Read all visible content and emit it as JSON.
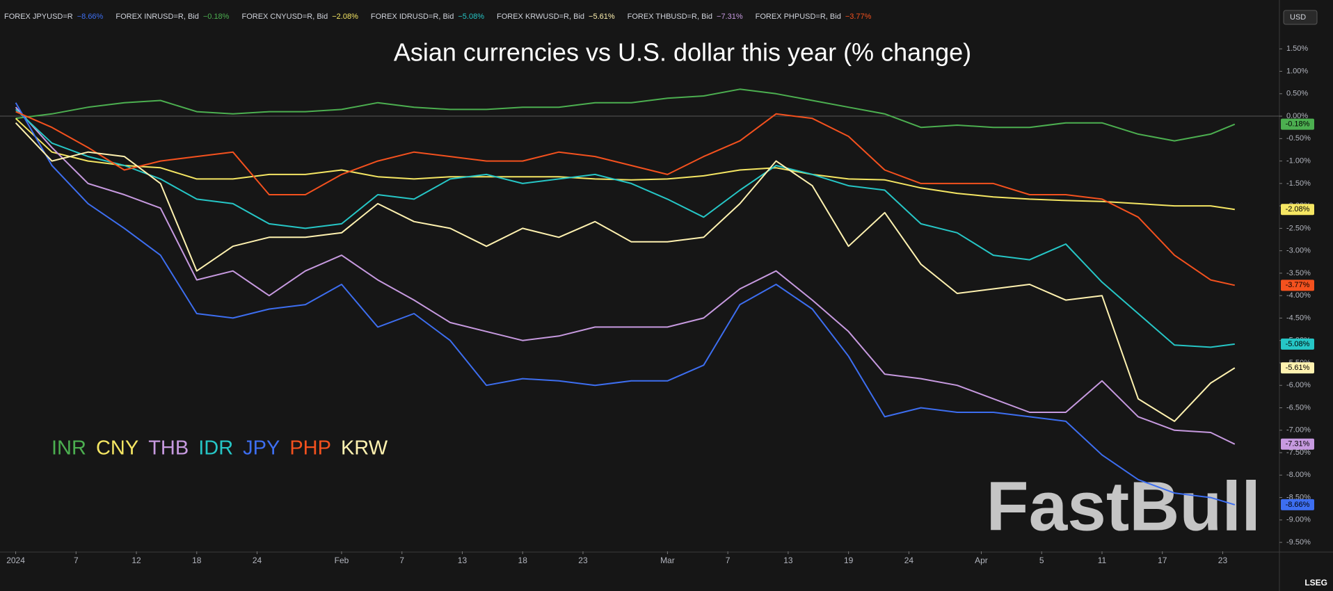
{
  "chart_data": {
    "type": "line",
    "title": "Asian currencies vs U.S. dollar this year (% change)",
    "currency": "USD",
    "watermark": "FastBull",
    "source": "LSEG",
    "tickers": [
      {
        "label": "FOREX JPYUSD=R",
        "change": "−8.66%",
        "color": "#3d6ef0"
      },
      {
        "label": "FOREX INRUSD=R, Bid",
        "change": "−0.18%",
        "color": "#4caf50"
      },
      {
        "label": "FOREX CNYUSD=R, Bid",
        "change": "−2.08%",
        "color": "#f5e663"
      },
      {
        "label": "FOREX IDRUSD=R, Bid",
        "change": "−5.08%",
        "color": "#26c6c6"
      },
      {
        "label": "FOREX KRWUSD=R, Bid",
        "change": "−5.61%",
        "color": "#fff2b0"
      },
      {
        "label": "FOREX THBUSD=R, Bid",
        "change": "−7.31%",
        "color": "#c79ae0"
      },
      {
        "label": "FOREX PHPUSD=R, Bid",
        "change": "−3.77%",
        "color": "#f4511e"
      }
    ],
    "x": [
      0,
      3,
      6,
      9,
      12,
      15,
      18,
      21,
      24,
      27,
      30,
      33,
      36,
      39,
      42,
      45,
      48,
      51,
      54,
      57,
      60,
      63,
      66,
      69,
      72,
      75,
      78,
      81,
      84,
      87,
      90,
      93,
      96,
      99,
      101
    ],
    "xlim": [
      -1.3,
      104.7
    ],
    "xticks": [
      {
        "value": 0,
        "label": "2024"
      },
      {
        "value": 5,
        "label": "7"
      },
      {
        "value": 10,
        "label": "12"
      },
      {
        "value": 15,
        "label": "18"
      },
      {
        "value": 20,
        "label": "24"
      },
      {
        "value": 27,
        "label": "Feb"
      },
      {
        "value": 32,
        "label": "7"
      },
      {
        "value": 37,
        "label": "13"
      },
      {
        "value": 42,
        "label": "18"
      },
      {
        "value": 47,
        "label": "23"
      },
      {
        "value": 54,
        "label": "Mar"
      },
      {
        "value": 59,
        "label": "7"
      },
      {
        "value": 64,
        "label": "13"
      },
      {
        "value": 69,
        "label": "19"
      },
      {
        "value": 74,
        "label": "24"
      },
      {
        "value": 80,
        "label": "Apr"
      },
      {
        "value": 85,
        "label": "5"
      },
      {
        "value": 90,
        "label": "11"
      },
      {
        "value": 95,
        "label": "17"
      },
      {
        "value": 100,
        "label": "23"
      }
    ],
    "ylim": [
      -9.7,
      2.0
    ],
    "yticks": [
      {
        "value": 1.5,
        "label": "1.50%"
      },
      {
        "value": 1.0,
        "label": "1.00%"
      },
      {
        "value": 0.5,
        "label": "0.50%"
      },
      {
        "value": 0,
        "label": "0.00%"
      },
      {
        "value": -0.5,
        "label": "-0.50%"
      },
      {
        "value": -1.0,
        "label": "-1.00%"
      },
      {
        "value": -1.5,
        "label": "-1.50%"
      },
      {
        "value": -2.0,
        "label": "-2.00%"
      },
      {
        "value": -2.5,
        "label": "-2.50%"
      },
      {
        "value": -3.0,
        "label": "-3.00%"
      },
      {
        "value": -3.5,
        "label": "-3.50%"
      },
      {
        "value": -4.0,
        "label": "-4.00%"
      },
      {
        "value": -4.5,
        "label": "-4.50%"
      },
      {
        "value": -5.0,
        "label": "-5.00%"
      },
      {
        "value": -5.5,
        "label": "-5.50%"
      },
      {
        "value": -6.0,
        "label": "-6.00%"
      },
      {
        "value": -6.5,
        "label": "-6.50%"
      },
      {
        "value": -7.0,
        "label": "-7.00%"
      },
      {
        "value": -7.5,
        "label": "-7.50%"
      },
      {
        "value": -8.0,
        "label": "-8.00%"
      },
      {
        "value": -8.5,
        "label": "-8.50%"
      },
      {
        "value": -9.0,
        "label": "-9.00%"
      },
      {
        "value": -9.5,
        "label": "-9.50%"
      }
    ],
    "grid": false,
    "legend": "bottom-left",
    "series": [
      {
        "name": "INR",
        "color": "#4caf50",
        "end_label": "-0.18%",
        "values": [
          -0.05,
          0.05,
          0.2,
          0.3,
          0.35,
          0.1,
          0.05,
          0.1,
          0.1,
          0.15,
          0.3,
          0.2,
          0.15,
          0.15,
          0.2,
          0.2,
          0.3,
          0.3,
          0.4,
          0.45,
          0.6,
          0.5,
          0.35,
          0.2,
          0.05,
          -0.25,
          -0.2,
          -0.25,
          -0.25,
          -0.15,
          -0.15,
          -0.4,
          -0.55,
          -0.4,
          -0.18
        ]
      },
      {
        "name": "CNY",
        "color": "#f5e663",
        "end_label": "-2.08%",
        "values": [
          -0.05,
          -0.8,
          -1.0,
          -1.1,
          -1.15,
          -1.4,
          -1.4,
          -1.3,
          -1.3,
          -1.2,
          -1.35,
          -1.4,
          -1.35,
          -1.35,
          -1.35,
          -1.35,
          -1.4,
          -1.42,
          -1.4,
          -1.33,
          -1.2,
          -1.15,
          -1.3,
          -1.4,
          -1.42,
          -1.6,
          -1.72,
          -1.8,
          -1.85,
          -1.88,
          -1.9,
          -1.95,
          -2.0,
          -2.0,
          -2.08
        ]
      },
      {
        "name": "THB",
        "color": "#c79ae0",
        "end_label": "-7.31%",
        "values": [
          0.2,
          -0.7,
          -1.5,
          -1.75,
          -2.05,
          -3.65,
          -3.45,
          -4.0,
          -3.45,
          -3.1,
          -3.65,
          -4.1,
          -4.6,
          -4.8,
          -5.0,
          -4.9,
          -4.7,
          -4.7,
          -4.7,
          -4.5,
          -3.85,
          -3.45,
          -4.1,
          -4.8,
          -5.75,
          -5.85,
          -6.0,
          -6.3,
          -6.6,
          -6.6,
          -5.9,
          -6.7,
          -7.0,
          -7.05,
          -7.31
        ]
      },
      {
        "name": "IDR",
        "color": "#26c6c6",
        "end_label": "-5.08%",
        "values": [
          0.15,
          -0.6,
          -0.9,
          -1.1,
          -1.4,
          -1.85,
          -1.95,
          -2.4,
          -2.5,
          -2.4,
          -1.75,
          -1.85,
          -1.4,
          -1.3,
          -1.5,
          -1.4,
          -1.3,
          -1.5,
          -1.85,
          -2.25,
          -1.65,
          -1.1,
          -1.3,
          -1.55,
          -1.65,
          -2.4,
          -2.6,
          -3.1,
          -3.2,
          -2.85,
          -3.7,
          -4.4,
          -5.1,
          -5.15,
          -5.08
        ]
      },
      {
        "name": "JPY",
        "color": "#3d6ef0",
        "end_label": "-8.66%",
        "values": [
          0.3,
          -1.1,
          -1.95,
          -2.5,
          -3.1,
          -4.4,
          -4.5,
          -4.3,
          -4.2,
          -3.75,
          -4.7,
          -4.4,
          -5.0,
          -6.0,
          -5.85,
          -5.9,
          -6.0,
          -5.9,
          -5.9,
          -5.55,
          -4.2,
          -3.75,
          -4.3,
          -5.35,
          -6.7,
          -6.5,
          -6.6,
          -6.6,
          -6.7,
          -6.8,
          -7.55,
          -8.1,
          -8.4,
          -8.5,
          -8.66
        ]
      },
      {
        "name": "PHP",
        "color": "#f4511e",
        "end_label": "-3.77%",
        "values": [
          0.1,
          -0.25,
          -0.7,
          -1.2,
          -1.0,
          -0.9,
          -0.8,
          -1.75,
          -1.75,
          -1.3,
          -1.0,
          -0.8,
          -0.9,
          -1.0,
          -1.0,
          -0.8,
          -0.9,
          -1.1,
          -1.3,
          -0.9,
          -0.55,
          0.05,
          -0.05,
          -0.45,
          -1.2,
          -1.5,
          -1.5,
          -1.5,
          -1.75,
          -1.75,
          -1.85,
          -2.25,
          -3.1,
          -3.65,
          -3.77
        ]
      },
      {
        "name": "KRW",
        "color": "#fff2b0",
        "end_label": "-5.61%",
        "values": [
          -0.15,
          -1.0,
          -0.8,
          -0.9,
          -1.5,
          -3.45,
          -2.9,
          -2.7,
          -2.7,
          -2.6,
          -1.95,
          -2.35,
          -2.5,
          -2.9,
          -2.5,
          -2.7,
          -2.35,
          -2.8,
          -2.8,
          -2.7,
          -1.95,
          -1.0,
          -1.55,
          -2.9,
          -2.15,
          -3.3,
          -3.95,
          -3.85,
          -3.75,
          -4.1,
          -4.0,
          -6.3,
          -6.8,
          -5.95,
          -5.61
        ]
      }
    ]
  }
}
